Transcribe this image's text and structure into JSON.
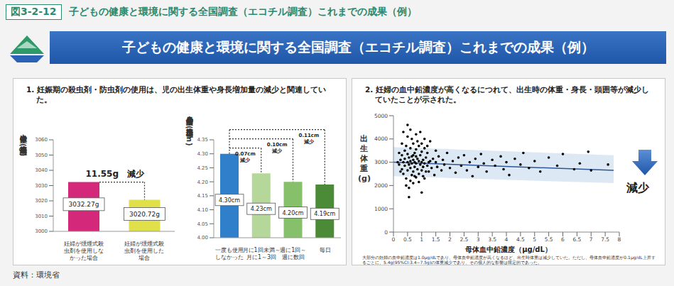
{
  "figure_label": "図3-2-12",
  "header_title": "子どもの健康と環境に関する全国調査（エコチル調査）これまでの成果（例）",
  "banner_title": "子どもの健康と環境に関する全国調査（エコチル調査）これまでの成果（例）",
  "panel_headings": [
    "1. 妊娠期の殺虫剤・防虫剤の使用は、児の出生体重や身長増加量の減少と関連していた。",
    "2. 妊婦の血中鉛濃度が高くなるにつれて、出生時の体重・身長・頭囲等が減少していたことが示された。"
  ],
  "source": "資料：環境省",
  "chart_data": [
    {
      "type": "bar",
      "y_label": "出生体重の推定平均値(g)",
      "categories": [
        "妊婦が燻煙式殺虫剤を使用しなかった場合",
        "妊婦が燻煙式殺虫剤を使用した場合"
      ],
      "values": [
        3032.27,
        3020.72
      ],
      "value_labels": [
        "3032.27g",
        "3020.72g"
      ],
      "data_labels": true,
      "colors": [
        "#d4287a",
        "#dfe04a"
      ],
      "ylim": [
        3000,
        3060
      ],
      "yticks": [
        3000,
        3010,
        3020,
        3030,
        3040,
        3050,
        3060
      ],
      "annotation": "11.55g　減少",
      "grid": false
    },
    {
      "type": "bar",
      "y_label": "身長増加量の推定平均値(cm)",
      "categories": [
        "一度も使用しなかった",
        "月に1回未満～月に1～3回",
        "週に1回～週に数回",
        "毎日"
      ],
      "values": [
        4.3,
        4.23,
        4.2,
        4.19
      ],
      "value_labels": [
        "4.30cm",
        "4.23cm",
        "4.20cm",
        "4.19cm"
      ],
      "data_labels": true,
      "colors": [
        "#2f7fcb",
        "#b5d89a",
        "#86c06a",
        "#4b8a36"
      ],
      "ylim": [
        4.0,
        4.35
      ],
      "yticks": [
        {
          "value": 4.0,
          "label": "4.00"
        },
        4.05,
        {
          "value": 4.1,
          "label": "4.10"
        },
        4.15,
        {
          "value": 4.2,
          "label": "4.20"
        },
        4.25,
        {
          "value": 4.3,
          "label": "4.30"
        },
        4.35
      ],
      "annotations": [
        "0.07cm 減少",
        "0.10cm 減少",
        "0.11cm 減少"
      ],
      "grid": false
    },
    {
      "type": "scatter",
      "y_label": "出生体重(g)",
      "x_label": "母体血中鉛濃度（μg/dL）",
      "xlim": [
        0,
        8
      ],
      "xticks": [
        0,
        0.5,
        1,
        1.5,
        2,
        2.5,
        3,
        3.5,
        4,
        4.5,
        5,
        5.5,
        6,
        6.5,
        7,
        7.5,
        8
      ],
      "ylim": [
        0,
        5000
      ],
      "yticks": [
        0,
        1000,
        2000,
        3000,
        4000,
        5000
      ],
      "grid": false,
      "series": [
        {
          "type": "scatter",
          "color": "#000000",
          "marker": "circle",
          "x": [
            0.2,
            0.25,
            0.3,
            0.3,
            0.35,
            0.35,
            0.4,
            0.4,
            0.4,
            0.45,
            0.45,
            0.5,
            0.5,
            0.5,
            0.5,
            0.55,
            0.55,
            0.55,
            0.6,
            0.6,
            0.6,
            0.6,
            0.65,
            0.65,
            0.65,
            0.7,
            0.7,
            0.7,
            0.7,
            0.75,
            0.75,
            0.75,
            0.8,
            0.8,
            0.8,
            0.8,
            0.85,
            0.85,
            0.9,
            0.9,
            0.9,
            0.95,
            0.95,
            1,
            1,
            1,
            1,
            1.05,
            1.05,
            1.1,
            1.1,
            1.1,
            1.15,
            1.2,
            1.2,
            1.25,
            1.3,
            1.3,
            1.35,
            1.4,
            1.45,
            1.5,
            1.5,
            1.55,
            1.6,
            1.7,
            1.75,
            1.8,
            1.9,
            2,
            2.1,
            2.2,
            2.3,
            2.4,
            2.5,
            2.6,
            2.7,
            2.8,
            2.9,
            3,
            3.1,
            3.2,
            3.3,
            3.5,
            3.6,
            3.8,
            3.9,
            4,
            4.1,
            4.3,
            4.5,
            4.6,
            4.8,
            5,
            5.2,
            5.5,
            5.8,
            6,
            6.4,
            6.6,
            6.9,
            7,
            7.6,
            0.15,
            0.2,
            0.25,
            0.3,
            0.35,
            0.45,
            0.5,
            0.55,
            0.6,
            0.65,
            0.7,
            0.75,
            0.8,
            0.85,
            0.9,
            0.95,
            1,
            1.05,
            1.1,
            1.15,
            1.2,
            1.25
          ],
          "values": [
            2900,
            3100,
            2700,
            3300,
            3000,
            2500,
            3500,
            2850,
            3150,
            2300,
            3700,
            3000,
            2650,
            3350,
            4100,
            2900,
            3200,
            1900,
            3050,
            2750,
            3600,
            4400,
            2450,
            3250,
            2950,
            3100,
            2600,
            3800,
            2100,
            3000,
            3400,
            2800,
            2950,
            3550,
            2350,
            4200,
            3150,
            2700,
            3050,
            2500,
            3700,
            2900,
            3300,
            3000,
            2650,
            3450,
            1700,
            3100,
            2800,
            2950,
            3600,
            2300,
            3200,
            2850,
            3400,
            2600,
            3050,
            3900,
            2750,
            3150,
            2450,
            3000,
            3500,
            2800,
            3250,
            2650,
            3100,
            2900,
            3400,
            2750,
            3050,
            2550,
            3200,
            2850,
            3300,
            2650,
            3000,
            2400,
            3150,
            2800,
            3350,
            2950,
            2600,
            3100,
            2850,
            3250,
            2700,
            3000,
            2450,
            3150,
            2900,
            3400,
            2750,
            3050,
            2600,
            3200,
            2850,
            3350,
            2700,
            2950,
            3450,
            2650,
            2900,
            3000,
            3400,
            2600,
            3800,
            4300,
            2000,
            4600,
            1500,
            2200,
            4000,
            3300,
            2400,
            3250,
            3900,
            2150,
            4300,
            3800,
            2400,
            4000,
            2600,
            3700,
            3000
          ]
        },
        {
          "type": "line",
          "color": "#2f5597",
          "x": [
            0,
            7.8
          ],
          "values": [
            3000,
            2650
          ]
        }
      ],
      "band": {
        "color": "#dce9f5",
        "x": [
          0,
          7.8
        ],
        "lower": [
          2400,
          2100
        ],
        "upper": [
          3650,
          3300
        ]
      },
      "annotation": "減少",
      "note": "大部分の妊婦の血中鉛濃度は1.0μg/dLであり、母体血中鉛濃度が高くなるほど、出生時体重は減少していた。ただし、母体血中鉛濃度が0.1μg/dL上昇するごとに、5.4g(95%CI:3.4−7.5g)の体重減少であり、その個人的な影響は限定的であった。"
    }
  ]
}
